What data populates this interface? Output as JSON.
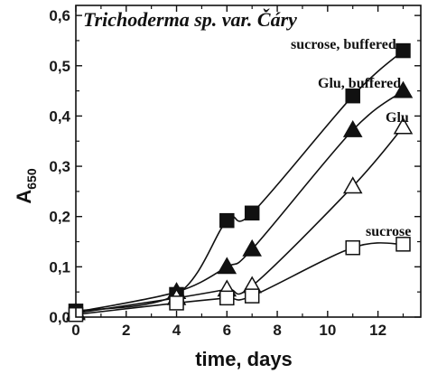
{
  "chart_data": {
    "type": "line",
    "title": "Trichoderma sp. var. Čáry",
    "xlabel": "time, days",
    "ylabel": "A",
    "ylabel_subscript": "650",
    "xlim": [
      0,
      13.7
    ],
    "ylim": [
      0,
      0.62
    ],
    "xticks": [
      0,
      2,
      4,
      6,
      8,
      10,
      12
    ],
    "xtick_labels": [
      "0",
      "2",
      "4",
      "6",
      "8",
      "10",
      "12"
    ],
    "yticks": [
      0.0,
      0.1,
      0.2,
      0.3,
      0.4,
      0.5,
      0.6
    ],
    "ytick_labels": [
      "0,0",
      "0,1",
      "0,2",
      "0,3",
      "0,4",
      "0,5",
      "0,6"
    ],
    "series": [
      {
        "name": "sucrose, buffered",
        "marker": "filled-square",
        "x": [
          0,
          4,
          6,
          7,
          11,
          13
        ],
        "y": [
          0.012,
          0.045,
          0.192,
          0.207,
          0.44,
          0.53
        ]
      },
      {
        "name": "Glu, buffered",
        "marker": "filled-triangle",
        "x": [
          0,
          4,
          6,
          7,
          11,
          13
        ],
        "y": [
          0.01,
          0.05,
          0.1,
          0.135,
          0.372,
          0.45
        ]
      },
      {
        "name": "Glu",
        "marker": "open-triangle",
        "x": [
          0,
          4,
          6,
          7,
          11,
          13
        ],
        "y": [
          0.008,
          0.038,
          0.055,
          0.062,
          0.26,
          0.378
        ]
      },
      {
        "name": "sucrose",
        "marker": "open-square",
        "x": [
          0,
          4,
          6,
          7,
          11,
          13
        ],
        "y": [
          0.005,
          0.028,
          0.038,
          0.042,
          0.138,
          0.145
        ]
      }
    ],
    "colors": {
      "line": "#111111",
      "background": "#ffffff"
    }
  }
}
